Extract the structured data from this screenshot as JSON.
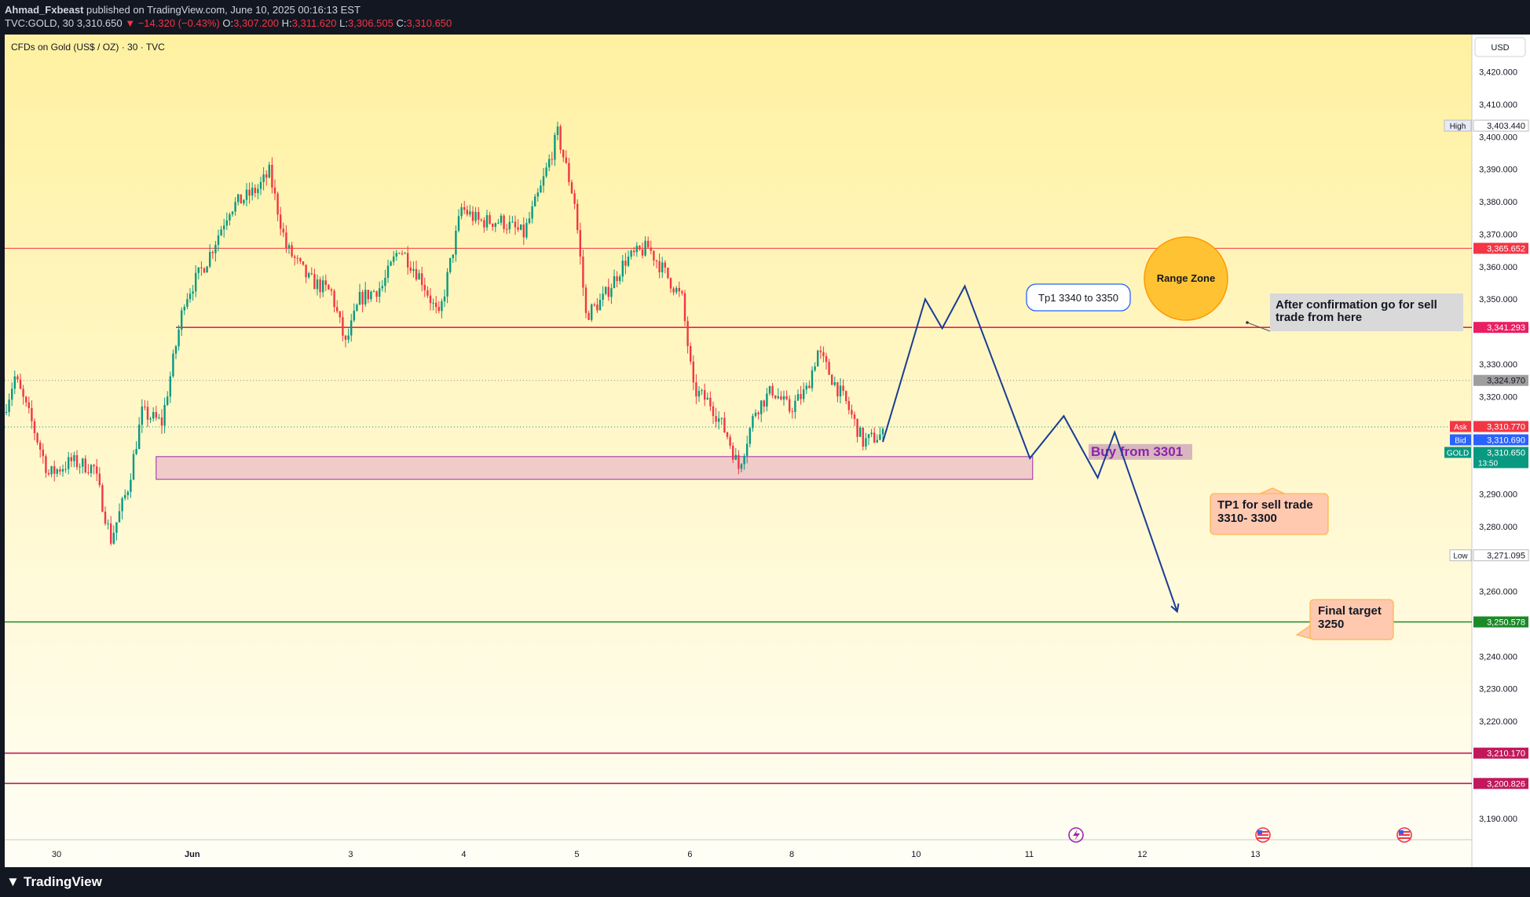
{
  "header": {
    "author": "Ahmad_Fxbeast",
    "published_text": "published on TradingView.com, June 10, 2025 00:16:13 EST",
    "symbol": "TVC:GOLD, 30",
    "price": "3,310.650",
    "change": "▼ −14.320 (−0.43%)",
    "o_label": "O:",
    "o_val": "3,307.200",
    "h_label": "H:",
    "h_val": "3,311.620",
    "l_label": "L:",
    "l_val": "3,306.505",
    "c_label": "C:",
    "c_val": "3,310.650"
  },
  "footer": {
    "brand": "TradingView"
  },
  "chart_data": {
    "type": "line",
    "title": "CFDs on Gold (US$ / OZ) · 30 · TVC",
    "currency": "USD",
    "ylim": [
      3183.5,
      3431.5
    ],
    "y_ticks": [
      3420,
      3410,
      3400,
      3390,
      3380,
      3370,
      3360,
      3350,
      3330,
      3320,
      3290,
      3280,
      3260,
      3240,
      3230,
      3220,
      3190
    ],
    "y_tick_labels": [
      "3,420.000",
      "3,410.000",
      "3,400.000",
      "3,390.000",
      "3,380.000",
      "3,370.000",
      "3,360.000",
      "3,350.000",
      "3,330.000",
      "3,320.000",
      "3,290.000",
      "3,280.000",
      "3,260.000",
      "3,240.000",
      "3,230.000",
      "3,220.000",
      "3,190.000"
    ],
    "x_ticks": [
      {
        "label": "30",
        "bar": 0
      },
      {
        "label": "Jun",
        "bar": 48
      },
      {
        "label": "3",
        "bar": 104
      },
      {
        "label": "4",
        "bar": 144
      },
      {
        "label": "5",
        "bar": 184
      },
      {
        "label": "6",
        "bar": 224
      },
      {
        "label": "8",
        "bar": 260
      },
      {
        "label": "10",
        "bar": 304
      },
      {
        "label": "11",
        "bar": 344
      },
      {
        "label": "12",
        "bar": 384
      },
      {
        "label": "13",
        "bar": 424
      }
    ],
    "price_points": [
      {
        "bar": 0,
        "price": 3315
      },
      {
        "bar": 4,
        "price": 3326
      },
      {
        "bar": 10,
        "price": 3312
      },
      {
        "bar": 16,
        "price": 3296
      },
      {
        "bar": 24,
        "price": 3300
      },
      {
        "bar": 32,
        "price": 3298
      },
      {
        "bar": 38,
        "price": 3276
      },
      {
        "bar": 44,
        "price": 3292
      },
      {
        "bar": 49,
        "price": 3315
      },
      {
        "bar": 56,
        "price": 3312
      },
      {
        "bar": 64,
        "price": 3350
      },
      {
        "bar": 72,
        "price": 3362
      },
      {
        "bar": 80,
        "price": 3378
      },
      {
        "bar": 90,
        "price": 3384
      },
      {
        "bar": 94,
        "price": 3389
      },
      {
        "bar": 100,
        "price": 3366
      },
      {
        "bar": 108,
        "price": 3356
      },
      {
        "bar": 116,
        "price": 3352
      },
      {
        "bar": 121,
        "price": 3336
      },
      {
        "bar": 126,
        "price": 3350
      },
      {
        "bar": 134,
        "price": 3354
      },
      {
        "bar": 140,
        "price": 3366
      },
      {
        "bar": 148,
        "price": 3356
      },
      {
        "bar": 154,
        "price": 3344
      },
      {
        "bar": 162,
        "price": 3378
      },
      {
        "bar": 168,
        "price": 3374
      },
      {
        "bar": 176,
        "price": 3374
      },
      {
        "bar": 184,
        "price": 3370
      },
      {
        "bar": 190,
        "price": 3384
      },
      {
        "bar": 196,
        "price": 3401
      },
      {
        "bar": 202,
        "price": 3380
      },
      {
        "bar": 206,
        "price": 3345
      },
      {
        "bar": 212,
        "price": 3350
      },
      {
        "bar": 220,
        "price": 3362
      },
      {
        "bar": 228,
        "price": 3366
      },
      {
        "bar": 234,
        "price": 3358
      },
      {
        "bar": 240,
        "price": 3350
      },
      {
        "bar": 244,
        "price": 3322
      },
      {
        "bar": 250,
        "price": 3318
      },
      {
        "bar": 256,
        "price": 3308
      },
      {
        "bar": 260,
        "price": 3298
      },
      {
        "bar": 266,
        "price": 3316
      },
      {
        "bar": 272,
        "price": 3322
      },
      {
        "bar": 278,
        "price": 3316
      },
      {
        "bar": 284,
        "price": 3322
      },
      {
        "bar": 288,
        "price": 3334
      },
      {
        "bar": 294,
        "price": 3324
      },
      {
        "bar": 298,
        "price": 3318
      },
      {
        "bar": 304,
        "price": 3306
      },
      {
        "bar": 310,
        "price": 3308
      }
    ],
    "horizontal_lines": [
      {
        "price": 3365.652,
        "label": "3,365.652",
        "color": "#f23645"
      },
      {
        "price": 3341.293,
        "label": "3,341.293",
        "color": "#e91e63"
      },
      {
        "price": 3250.578,
        "label": "3,250.578",
        "color": "#1b8a28"
      },
      {
        "price": 3210.17,
        "label": "3,210.170",
        "color": "#c2185b"
      },
      {
        "price": 3200.826,
        "label": "3,200.826",
        "color": "#c2185b"
      }
    ],
    "price_tags": [
      {
        "name": "high",
        "side_label": "High",
        "value": "3,403.440",
        "price": 3403.44
      },
      {
        "name": "prev-close",
        "side_label": "",
        "value": "3,324.970",
        "price": 3324.97
      },
      {
        "name": "ask",
        "side_label": "Ask",
        "value": "3,310.770",
        "price": 3310.77
      },
      {
        "name": "bid",
        "side_label": "Bid",
        "value": "3,310.690",
        "price": 3310.69
      },
      {
        "name": "gold",
        "side_label": "GOLD",
        "value": "3,310.650",
        "price": 3310.65,
        "sub": "13:50"
      },
      {
        "name": "low",
        "side_label": "Low",
        "value": "3,271.095",
        "price": 3271.095
      }
    ],
    "buy_zone": {
      "from_bar": 53,
      "to_bar": 363,
      "price_top": 3301.5,
      "price_bottom": 3294.5,
      "label": "Buy from 3301"
    },
    "projection": [
      {
        "bar": 310,
        "price": 3306
      },
      {
        "bar": 325,
        "price": 3350
      },
      {
        "bar": 331,
        "price": 3341
      },
      {
        "bar": 339,
        "price": 3354
      },
      {
        "bar": 362,
        "price": 3301
      },
      {
        "bar": 374,
        "price": 3314
      },
      {
        "bar": 386,
        "price": 3295
      },
      {
        "bar": 392,
        "price": 3309
      },
      {
        "bar": 414,
        "price": 3254
      }
    ],
    "annotations": [
      {
        "name": "tp1-buy",
        "text": "Tp1 3340 to 3350"
      },
      {
        "name": "range-zone",
        "text": "Range Zone"
      },
      {
        "name": "after-confirmation",
        "text": "After confirmation go for sell trade from here"
      },
      {
        "name": "tp1-sell",
        "text": "TP1 for sell trade 3310- 3300"
      },
      {
        "name": "final-target",
        "text": "Final target 3250"
      }
    ],
    "colors": {
      "up": "#089981",
      "down": "#f23645",
      "projection": "#1a3c96",
      "bg_top": "#fff1a1",
      "bg_bottom": "#fffef6"
    },
    "grid": false
  }
}
